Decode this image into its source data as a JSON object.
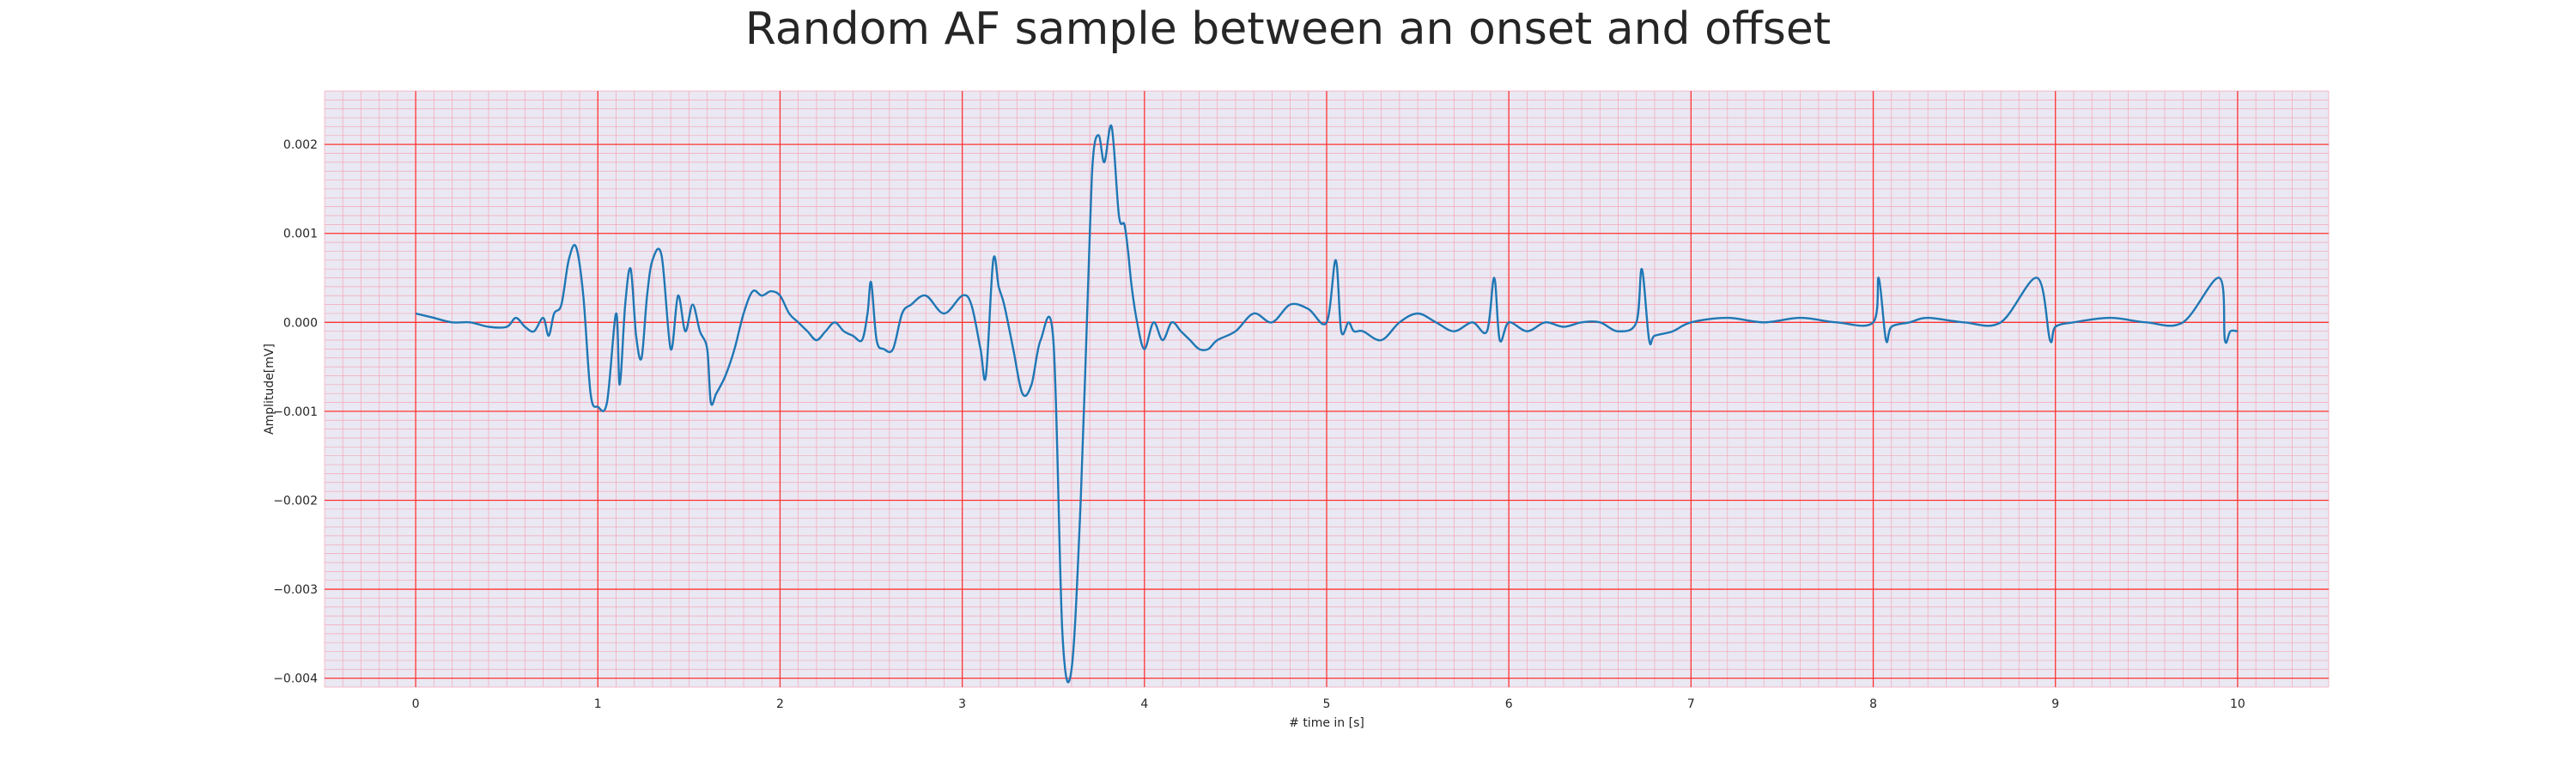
{
  "chart_data": {
    "type": "line",
    "title": "Random AF sample between an onset and offset",
    "xlabel": "# time in [s]",
    "ylabel": "Amplitude[mV]",
    "xlim": [
      -0.5,
      10.5
    ],
    "ylim": [
      -0.0041,
      0.0026
    ],
    "xticks": [
      0,
      1,
      2,
      3,
      4,
      5,
      6,
      7,
      8,
      9,
      10
    ],
    "xtick_labels": [
      "0",
      "1",
      "2",
      "3",
      "4",
      "5",
      "6",
      "7",
      "8",
      "9",
      "10"
    ],
    "yticks": [
      0.002,
      0.001,
      0.0,
      -0.001,
      -0.002,
      -0.003,
      -0.004
    ],
    "ytick_labels": [
      "0.002",
      "0.001",
      "0.000",
      "−0.001",
      "−0.002",
      "−0.003",
      "−0.004"
    ],
    "grid": true,
    "minor_grid": true,
    "legend": false,
    "colors": {
      "line": "#1f77b4",
      "plot_background": "#eae8f2",
      "major_grid": "#ff3333",
      "minor_grid": "#f4a6b8"
    },
    "series": [
      {
        "x": [
          0.0,
          0.1,
          0.2,
          0.3,
          0.4,
          0.5,
          0.55,
          0.6,
          0.65,
          0.7,
          0.73,
          0.76,
          0.8,
          0.84,
          0.88,
          0.92,
          0.96,
          1.0,
          1.05,
          1.1,
          1.12,
          1.15,
          1.18,
          1.21,
          1.24,
          1.27,
          1.3,
          1.35,
          1.4,
          1.44,
          1.48,
          1.52,
          1.56,
          1.6,
          1.62,
          1.65,
          1.7,
          1.75,
          1.8,
          1.85,
          1.9,
          1.95,
          2.0,
          2.05,
          2.1,
          2.15,
          2.2,
          2.25,
          2.3,
          2.35,
          2.4,
          2.45,
          2.48,
          2.5,
          2.53,
          2.57,
          2.62,
          2.67,
          2.72,
          2.8,
          2.9,
          3.0,
          3.05,
          3.1,
          3.13,
          3.17,
          3.2,
          3.23,
          3.28,
          3.33,
          3.38,
          3.43,
          3.5,
          3.55,
          3.6,
          3.65,
          3.7,
          3.72,
          3.75,
          3.78,
          3.82,
          3.86,
          3.89,
          3.91,
          3.93,
          3.96,
          4.0,
          4.05,
          4.1,
          4.15,
          4.2,
          4.25,
          4.3,
          4.35,
          4.4,
          4.5,
          4.6,
          4.7,
          4.8,
          4.9,
          5.0,
          5.05,
          5.08,
          5.12,
          5.15,
          5.2,
          5.3,
          5.4,
          5.5,
          5.6,
          5.7,
          5.8,
          5.88,
          5.92,
          5.95,
          6.0,
          6.1,
          6.2,
          6.3,
          6.4,
          6.5,
          6.6,
          6.7,
          6.73,
          6.77,
          6.8,
          6.9,
          7.0,
          7.2,
          7.4,
          7.6,
          7.8,
          8.0,
          8.03,
          8.07,
          8.1,
          8.2,
          8.3,
          8.5,
          8.7,
          8.9,
          8.97,
          9.0,
          9.1,
          9.3,
          9.5,
          9.7,
          9.9,
          9.93,
          9.96,
          10.0
        ],
        "values": [
          0.0001,
          5e-05,
          0.0,
          0.0,
          -5e-05,
          -5e-05,
          5e-05,
          -5e-05,
          -0.0001,
          5e-05,
          -0.00015,
          0.0001,
          0.0002,
          0.0007,
          0.00085,
          0.0003,
          -0.0008,
          -0.00095,
          -0.0009,
          0.0001,
          -0.0007,
          0.0002,
          0.0006,
          -0.00015,
          -0.0004,
          0.0003,
          0.0007,
          0.00075,
          -0.0003,
          0.0003,
          -0.0001,
          0.0002,
          -0.0001,
          -0.0003,
          -0.0009,
          -0.0008,
          -0.0006,
          -0.0003,
          0.0001,
          0.00035,
          0.0003,
          0.00035,
          0.0003,
          0.0001,
          0.0,
          -0.0001,
          -0.0002,
          -0.0001,
          0.0,
          -0.0001,
          -0.00015,
          -0.0002,
          0.0001,
          0.00045,
          -0.0002,
          -0.0003,
          -0.0003,
          0.0001,
          0.0002,
          0.0003,
          0.0001,
          0.0003,
          0.0002,
          -0.0003,
          -0.0006,
          0.0007,
          0.0004,
          0.0002,
          -0.0003,
          -0.0008,
          -0.0007,
          -0.0002,
          -0.0002,
          -0.0035,
          -0.0039,
          -0.002,
          0.001,
          0.0019,
          0.0021,
          0.0018,
          0.0022,
          0.0012,
          0.0011,
          0.0008,
          0.0004,
          0.0,
          -0.0003,
          0.0,
          -0.0002,
          0.0,
          -0.0001,
          -0.0002,
          -0.0003,
          -0.0003,
          -0.0002,
          -0.0001,
          0.0001,
          0.0,
          0.0002,
          0.00015,
          0.0,
          0.0007,
          -0.0001,
          0.0,
          -0.0001,
          -0.0001,
          -0.0002,
          0.0,
          0.0001,
          0.0,
          -0.0001,
          0.0,
          -0.0001,
          0.0005,
          -0.0002,
          0.0,
          -0.0001,
          0.0,
          -5e-05,
          0.0,
          0.0,
          -0.0001,
          0.0,
          0.0006,
          -0.0002,
          -0.00015,
          -0.0001,
          0.0,
          5e-05,
          0.0,
          5e-05,
          0.0,
          0.0,
          0.0005,
          -0.0002,
          -5e-05,
          0.0,
          5e-05,
          0.0,
          0.0,
          0.0005,
          -0.0002,
          -5e-05,
          0.0,
          5e-05,
          0.0,
          0.0,
          0.0005,
          -0.0002,
          -0.0001,
          -0.0001
        ]
      }
    ]
  }
}
